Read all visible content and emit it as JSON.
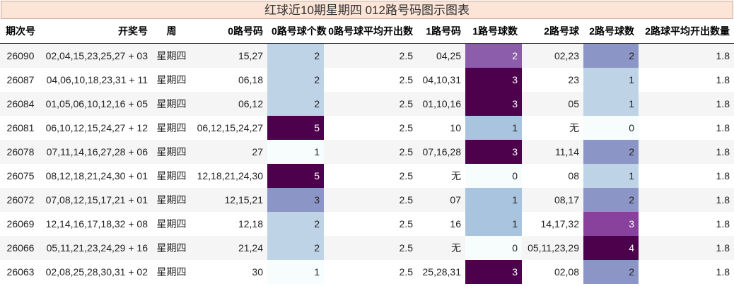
{
  "title": "红球近10期星期四 012路号码图示图表",
  "table": {
    "headers": [
      "期次号",
      "开奖号",
      "周",
      "0路号码",
      "0路号球个数",
      "0路号球平均开出数",
      "1路号码",
      "1路号球数",
      "2路号球",
      "2路号球数",
      "2路球平均开出数量"
    ],
    "rows": [
      [
        "26090",
        "02,04,15,23,25,27 + 03",
        "星期四",
        "15,27",
        "2",
        "2.5",
        "04,25",
        "2",
        "02,23",
        "2",
        "1.8"
      ],
      [
        "26087",
        "04,06,10,18,23,31 + 11",
        "星期四",
        "06,18",
        "2",
        "2.5",
        "04,10,31",
        "3",
        "23",
        "1",
        "1.8"
      ],
      [
        "26084",
        "01,05,06,10,12,16 + 05",
        "星期四",
        "06,12",
        "2",
        "2.5",
        "01,10,16",
        "3",
        "05",
        "1",
        "1.8"
      ],
      [
        "26081",
        "06,10,12,15,24,27 + 12",
        "星期四",
        "06,12,15,24,27",
        "5",
        "2.5",
        "10",
        "1",
        "无",
        "0",
        "1.8"
      ],
      [
        "26078",
        "07,11,14,16,27,28 + 06",
        "星期四",
        "27",
        "1",
        "2.5",
        "07,16,28",
        "3",
        "11,14",
        "2",
        "1.8"
      ],
      [
        "26075",
        "08,12,18,21,24,30 + 01",
        "星期四",
        "12,18,21,24,30",
        "5",
        "2.5",
        "无",
        "0",
        "08",
        "1",
        "1.8"
      ],
      [
        "26072",
        "07,08,12,15,17,21 + 01",
        "星期四",
        "12,15,21",
        "3",
        "2.5",
        "07",
        "1",
        "08,17",
        "2",
        "1.8"
      ],
      [
        "26069",
        "12,14,16,17,18,32 + 08",
        "星期四",
        "12,18",
        "2",
        "2.5",
        "16",
        "1",
        "14,17,32",
        "3",
        "1.8"
      ],
      [
        "26066",
        "05,11,21,23,24,29 + 16",
        "星期四",
        "21,24",
        "2",
        "2.5",
        "无",
        "0",
        "05,11,23,29",
        "4",
        "1.8"
      ],
      [
        "26063",
        "02,08,25,28,30,31 + 02",
        "星期四",
        "30",
        "1",
        "2.5",
        "25,28,31",
        "3",
        "02,08",
        "2",
        "1.8"
      ]
    ]
  }
}
